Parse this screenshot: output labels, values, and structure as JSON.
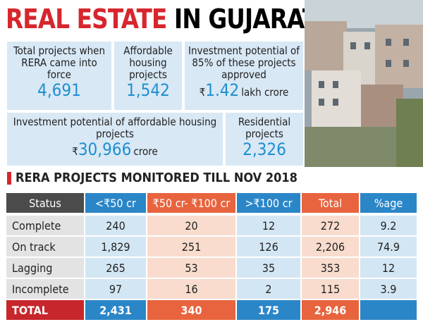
{
  "header": {
    "title_red": "REAL ESTATE",
    "title_black": "IN GUJARAT"
  },
  "stats": [
    {
      "label": "Total projects when RERA came into force",
      "value": "4,691"
    },
    {
      "label": "Affordable housing projects",
      "value": "1,542"
    },
    {
      "label": "Investment potential of 85% of these projects approved",
      "prefix": "₹",
      "value": "1.42",
      "unit": "lakh crore"
    },
    {
      "label": "Investment potential of affordable housing projects",
      "prefix": "₹",
      "value": "30,966",
      "unit": "crore"
    },
    {
      "label": "Residential projects",
      "value": "2,326"
    }
  ],
  "section_title": "RERA PROJECTS MONITORED TILL NOV 2018",
  "table": {
    "header": [
      "Status",
      "<₹50 cr",
      "₹50 cr- ₹100 cr",
      ">₹100 cr",
      "Total",
      "%age"
    ],
    "rows": [
      [
        "Complete",
        "240",
        "20",
        "12",
        "272",
        "9.2"
      ],
      [
        "On track",
        "1,829",
        "251",
        "126",
        "2,206",
        "74.9"
      ],
      [
        "Lagging",
        "265",
        "53",
        "35",
        "353",
        "12"
      ],
      [
        "Incomplete",
        "97",
        "16",
        "2",
        "115",
        "3.9"
      ]
    ],
    "total": [
      "TOTAL",
      "2,431",
      "340",
      "175",
      "2,946"
    ]
  }
}
